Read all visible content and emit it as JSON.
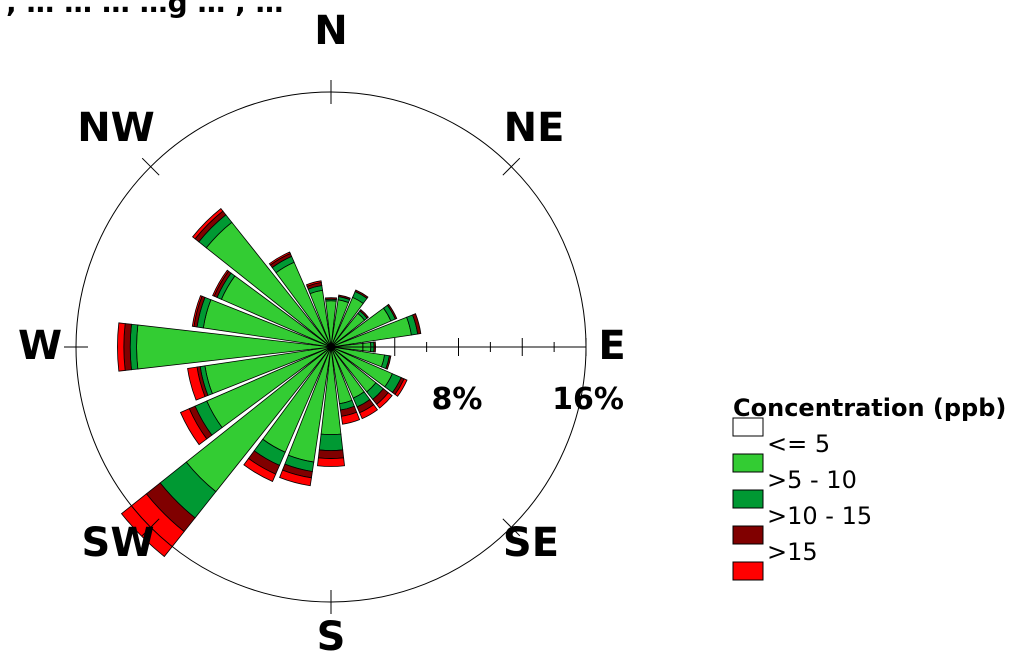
{
  "title_fragment": ", … … … …g … , …",
  "chart_data": {
    "type": "windrose",
    "directions": [
      "N",
      "NE",
      "E",
      "SE",
      "S",
      "SW",
      "W",
      "NW"
    ],
    "radial_ticks": [
      "8%",
      "16%"
    ],
    "radial_max": 16,
    "legend_title": "Concentration (ppb)",
    "series": [
      {
        "name": "<= 5",
        "color": "#ffffff"
      },
      {
        "name": ">5 - 10",
        "color": "#33cc33"
      },
      {
        "name": ">10 - 15",
        "color": "#009933"
      },
      {
        "name": ">15",
        "color": "#800000"
      },
      {
        "name": "",
        "color": "#ff0000"
      }
    ],
    "sectors": [
      {
        "direction": 0,
        "values": [
          0,
          2.9,
          0.1,
          0.1,
          0
        ]
      },
      {
        "direction": 15,
        "values": [
          0,
          3.0,
          0.2,
          0.1,
          0
        ]
      },
      {
        "direction": 30,
        "values": [
          0,
          3.4,
          0.4,
          0.1,
          0
        ]
      },
      {
        "direction": 45,
        "values": [
          0,
          2.7,
          0.2,
          0.1,
          0
        ]
      },
      {
        "direction": 60,
        "values": [
          0,
          4.1,
          0.3,
          0.1,
          0
        ]
      },
      {
        "direction": 75,
        "values": [
          0,
          5.1,
          0.4,
          0.2,
          0
        ]
      },
      {
        "direction": 90,
        "values": [
          0,
          2.5,
          0.2,
          0.1,
          0
        ]
      },
      {
        "direction": 105,
        "values": [
          0,
          3.4,
          0.3,
          0.1,
          0
        ]
      },
      {
        "direction": 120,
        "values": [
          0,
          4.2,
          0.6,
          0.2,
          0.2
        ]
      },
      {
        "direction": 135,
        "values": [
          0,
          3.6,
          0.6,
          0.4,
          0.3
        ]
      },
      {
        "direction": 150,
        "values": [
          0,
          3.5,
          0.6,
          0.4,
          0.4
        ]
      },
      {
        "direction": 165,
        "values": [
          0,
          3.6,
          0.4,
          0.4,
          0.5
        ]
      },
      {
        "direction": 180,
        "values": [
          0,
          5.5,
          1.0,
          0.5,
          0.5
        ]
      },
      {
        "direction": 195,
        "values": [
          0,
          7.3,
          0.6,
          0.4,
          0.5
        ]
      },
      {
        "direction": 210,
        "values": [
          0,
          7.2,
          0.9,
          0.6,
          0.5
        ]
      },
      {
        "direction": 225,
        "values": [
          0,
          11.6,
          2.1,
          1.1,
          2.0
        ]
      },
      {
        "direction": 240,
        "values": [
          0,
          8.5,
          0.8,
          0.4,
          0.6
        ]
      },
      {
        "direction": 255,
        "values": [
          0,
          8.0,
          0.3,
          0.2,
          0.6
        ]
      },
      {
        "direction": 270,
        "values": [
          0,
          12.2,
          0.4,
          0.4,
          0.4
        ]
      },
      {
        "direction": 285,
        "values": [
          0,
          8.1,
          0.4,
          0.2,
          0.1
        ]
      },
      {
        "direction": 300,
        "values": [
          0,
          7.5,
          0.3,
          0.2,
          0.1
        ]
      },
      {
        "direction": 315,
        "values": [
          0,
          10.0,
          0.6,
          0.3,
          0.2
        ]
      },
      {
        "direction": 330,
        "values": [
          0,
          5.8,
          0.4,
          0.2,
          0.1
        ]
      },
      {
        "direction": 345,
        "values": [
          0,
          3.6,
          0.3,
          0.2,
          0.1
        ]
      }
    ],
    "grid": false,
    "legend_position": "right"
  }
}
